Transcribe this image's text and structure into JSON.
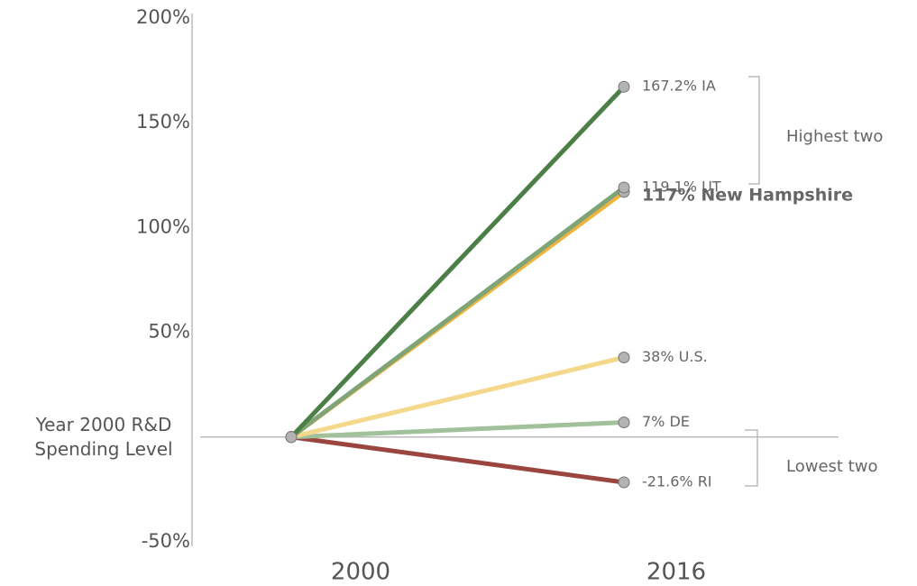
{
  "chart_data": {
    "type": "line",
    "categories": [
      "2000",
      "2016"
    ],
    "ylim": [
      -50,
      200
    ],
    "yticks": [
      {
        "value": -50,
        "label": "-50%"
      },
      {
        "value": 0,
        "label": "Year 2000 R&D Spending Level"
      },
      {
        "value": 50,
        "label": "50%"
      },
      {
        "value": 100,
        "label": "100%"
      },
      {
        "value": 150,
        "label": "150%"
      },
      {
        "value": 200,
        "label": "200%"
      }
    ],
    "grid": false,
    "series": [
      {
        "color": "#4b7f46",
        "values": [
          0,
          167.2
        ],
        "value_labels": [
          null,
          "167.2% IA"
        ]
      },
      {
        "color": "#7ea477",
        "values": [
          0,
          119.1
        ],
        "value_labels": [
          null,
          "119.1% UT"
        ]
      },
      {
        "color": "#f0b43c",
        "values": [
          0,
          117
        ],
        "value_labels": [
          null,
          "117% New Hampshire"
        ],
        "highlight": true
      },
      {
        "color": "#f4d98c",
        "values": [
          0,
          38
        ],
        "value_labels": [
          null,
          "38% U.S."
        ]
      },
      {
        "color": "#a0c19a",
        "values": [
          0,
          7
        ],
        "value_labels": [
          null,
          "7% DE"
        ]
      },
      {
        "color": "#9b4540",
        "values": [
          0,
          -21.6
        ],
        "value_labels": [
          null,
          "-21.6% RI"
        ]
      }
    ],
    "annotations": [
      {
        "text": "Highest two"
      },
      {
        "text": "Lowest two"
      }
    ]
  }
}
